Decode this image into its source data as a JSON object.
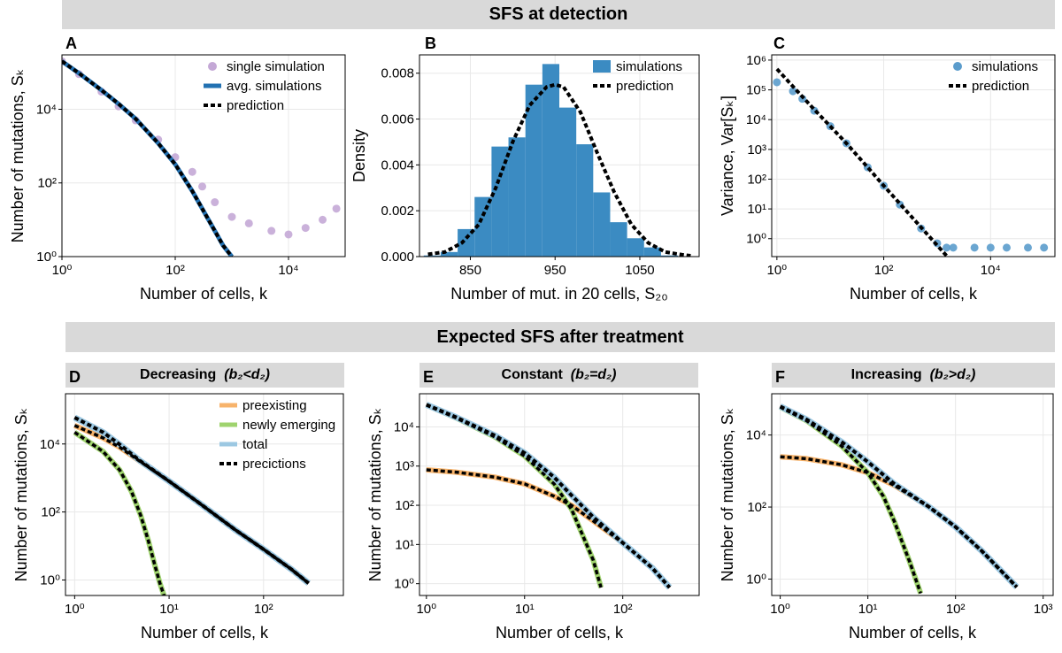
{
  "titles": {
    "top": "SFS at detection",
    "bottom": "Expected SFS after treatment"
  },
  "subbanners": {
    "D": {
      "text": "Decreasing",
      "cond": "(b₂<d₂)"
    },
    "E": {
      "text": "Constant",
      "cond": "(b₂=d₂)"
    },
    "F": {
      "text": "Increasing",
      "cond": "(b₂>d₂)"
    }
  },
  "colors": {
    "sim_purple": "#c4a8d6",
    "avg_blue": "#2271b2",
    "hist_blue": "#3b8bc2",
    "var_blue": "#5b9ccc",
    "preexisting": "#f7b36b",
    "newly": "#9fd36e",
    "total": "#9cc8e2",
    "prediction": "#000000",
    "grid": "#e8e8e8"
  },
  "chart_data": [
    {
      "panel": "A",
      "type": "scatter",
      "xlabel": "Number of cells, k",
      "ylabel": "Number of mutations, Sₖ",
      "xscale": "log",
      "yscale": "log",
      "xlim": [
        1,
        100000
      ],
      "ylim": [
        1,
        300000
      ],
      "xticks": [
        "10⁰",
        "10²",
        "10⁴"
      ],
      "yticks": [
        "10⁰",
        "10²",
        "10⁴"
      ],
      "legend_position": "top-right",
      "series": [
        {
          "name": "single simulation",
          "style": "scatter",
          "x": [
            1,
            2,
            5,
            10,
            20,
            50,
            100,
            200,
            300,
            500,
            1000,
            2000,
            5000,
            10000,
            20000,
            40000,
            70000
          ],
          "y": [
            200000,
            90000,
            30000,
            12000,
            5000,
            1500,
            500,
            200,
            80,
            30,
            12,
            8,
            5,
            4,
            6,
            10,
            20
          ]
        },
        {
          "name": "avg. simulations",
          "style": "line",
          "x": [
            1,
            2,
            5,
            10,
            20,
            50,
            100,
            200,
            300,
            500,
            700,
            1000
          ],
          "y": [
            200000,
            95000,
            33000,
            14000,
            5500,
            1200,
            320,
            60,
            20,
            5,
            2,
            1
          ]
        },
        {
          "name": "prediction",
          "style": "dotted",
          "x": [
            1,
            2,
            5,
            10,
            20,
            50,
            100,
            200,
            300,
            500,
            700,
            1000
          ],
          "y": [
            200000,
            95000,
            33000,
            14000,
            5500,
            1200,
            320,
            60,
            20,
            5,
            2,
            1
          ]
        }
      ]
    },
    {
      "panel": "B",
      "type": "bar",
      "xlabel": "Number of mut. in 20 cells, S₂₀",
      "ylabel": "Density",
      "xlim": [
        790,
        1120
      ],
      "ylim": [
        0,
        0.0088
      ],
      "xticks": [
        "850",
        "950",
        "1050"
      ],
      "yticks": [
        "0.000",
        "0.002",
        "0.004",
        "0.006",
        "0.008"
      ],
      "legend_position": "top-right",
      "bin_edges": [
        795,
        815,
        835,
        855,
        875,
        895,
        915,
        935,
        955,
        975,
        995,
        1015,
        1035,
        1055,
        1075,
        1095
      ],
      "series": [
        {
          "name": "simulations",
          "style": "bar",
          "values": [
            5e-05,
            0.0002,
            0.0012,
            0.0026,
            0.0048,
            0.0052,
            0.0075,
            0.0084,
            0.0065,
            0.0049,
            0.0028,
            0.0015,
            0.0008,
            0.0004,
            5e-05
          ]
        },
        {
          "name": "prediction",
          "style": "dotted",
          "x": [
            800,
            820,
            840,
            860,
            880,
            900,
            920,
            940,
            950,
            960,
            980,
            1000,
            1020,
            1040,
            1060,
            1080,
            1100,
            1110
          ],
          "y": [
            0.0001,
            0.0002,
            0.0006,
            0.0014,
            0.003,
            0.005,
            0.0066,
            0.0074,
            0.0075,
            0.0074,
            0.0063,
            0.0045,
            0.0028,
            0.0014,
            0.0006,
            0.0002,
            8e-05,
            4e-05
          ]
        }
      ]
    },
    {
      "panel": "C",
      "type": "scatter",
      "xlabel": "Number of cells, k",
      "ylabel": "Variance, Var[Sₖ]",
      "xscale": "log",
      "yscale": "log",
      "xlim": [
        0.8,
        160000
      ],
      "ylim": [
        0.25,
        1500000
      ],
      "xticks": [
        "10⁰",
        "10²",
        "10⁴"
      ],
      "yticks": [
        "10⁰",
        "10¹",
        "10²",
        "10³",
        "10⁴",
        "10⁵",
        "10⁶"
      ],
      "legend_position": "top-right",
      "series": [
        {
          "name": "simulations",
          "style": "scatter",
          "x": [
            1,
            2,
            3,
            5,
            10,
            20,
            50,
            100,
            200,
            500,
            1000,
            1500,
            2000,
            5000,
            10000,
            20000,
            50000,
            100000
          ],
          "y": [
            180000,
            90000,
            50000,
            20000,
            6000,
            1600,
            250,
            60,
            14,
            2.2,
            0.7,
            0.5,
            0.5,
            0.5,
            0.5,
            0.5,
            0.5,
            0.5
          ]
        },
        {
          "name": "prediction",
          "style": "dotted",
          "x": [
            1,
            2,
            5,
            10,
            20,
            50,
            100,
            200,
            500,
            1000,
            2000
          ],
          "y": [
            500000,
            130000,
            22000,
            6000,
            1600,
            250,
            60,
            15,
            2.4,
            0.6,
            0.15
          ]
        }
      ]
    },
    {
      "panel": "D",
      "type": "line",
      "xlabel": "Number of cells, k",
      "ylabel": "Number of mutations, Sₖ",
      "xscale": "log",
      "yscale": "log",
      "xlim": [
        0.8,
        700
      ],
      "ylim": [
        0.35,
        300000
      ],
      "xticks": [
        "10⁰",
        "10¹",
        "10²"
      ],
      "yticks": [
        "10⁰",
        "10²",
        "10⁴"
      ],
      "legend_position": "top-right",
      "series": [
        {
          "name": "preexisting",
          "style": "line",
          "x": [
            1,
            2,
            3,
            5,
            10,
            20,
            50,
            100,
            200,
            300
          ],
          "y": [
            35000,
            15000,
            8000,
            3000,
            800,
            200,
            30,
            8,
            2,
            0.8
          ]
        },
        {
          "name": "newly emerging",
          "style": "line",
          "x": [
            1,
            2,
            3,
            4,
            5,
            6,
            7,
            8,
            9
          ],
          "y": [
            22000,
            6000,
            1700,
            400,
            80,
            15,
            3,
            0.8,
            0.3
          ]
        },
        {
          "name": "total",
          "style": "line",
          "x": [
            1,
            2,
            3,
            5,
            10,
            20,
            50,
            100,
            200,
            300
          ],
          "y": [
            60000,
            22000,
            9600,
            3100,
            800,
            200,
            30,
            8,
            2,
            0.8
          ]
        },
        {
          "name": "precictions",
          "style": "dotted",
          "x": [
            1,
            2,
            3,
            5,
            10,
            20,
            50,
            100,
            200,
            300
          ],
          "y": [
            60000,
            22000,
            9600,
            3100,
            800,
            200,
            30,
            8,
            2,
            0.8
          ]
        }
      ]
    },
    {
      "panel": "E",
      "type": "line",
      "xlabel": "Number of cells, k",
      "ylabel": "Number of mutations, Sₖ",
      "xscale": "log",
      "yscale": "log",
      "xlim": [
        0.85,
        600
      ],
      "ylim": [
        0.5,
        70000
      ],
      "xticks": [
        "10⁰",
        "10¹",
        "10²"
      ],
      "yticks": [
        "10⁰",
        "10¹",
        "10²",
        "10³",
        "10⁴"
      ],
      "series": [
        {
          "name": "preexisting",
          "style": "line",
          "x": [
            1,
            2,
            5,
            10,
            20,
            30,
            50,
            100,
            200,
            300
          ],
          "y": [
            800,
            700,
            520,
            350,
            170,
            100,
            40,
            11,
            2.5,
            0.8
          ]
        },
        {
          "name": "newly emerging",
          "style": "line",
          "x": [
            1,
            2,
            5,
            10,
            20,
            30,
            40,
            50,
            60
          ],
          "y": [
            36000,
            17000,
            5500,
            1800,
            350,
            80,
            15,
            4,
            0.8
          ]
        },
        {
          "name": "total",
          "style": "line",
          "x": [
            1,
            2,
            5,
            10,
            20,
            30,
            50,
            100,
            200,
            300
          ],
          "y": [
            36800,
            17700,
            6000,
            2150,
            520,
            180,
            50,
            11,
            2.5,
            0.8
          ]
        },
        {
          "name": "precictions",
          "style": "dotted",
          "x": [
            1,
            2,
            5,
            10,
            20,
            30,
            50,
            100,
            200,
            300
          ],
          "y": [
            36800,
            17700,
            6000,
            2150,
            520,
            180,
            50,
            11,
            2.5,
            0.8
          ]
        }
      ]
    },
    {
      "panel": "F",
      "type": "line",
      "xlabel": "Number of cells, k",
      "ylabel": "Number of mutations, Sₖ",
      "xscale": "log",
      "yscale": "log",
      "xlim": [
        0.8,
        1300
      ],
      "ylim": [
        0.35,
        140000
      ],
      "xticks": [
        "10⁰",
        "10¹",
        "10²",
        "10³"
      ],
      "yticks": [
        "10⁰",
        "10²",
        "10⁴"
      ],
      "series": [
        {
          "name": "preexisting",
          "style": "line",
          "x": [
            1,
            2,
            5,
            10,
            20,
            50,
            100,
            200,
            500
          ],
          "y": [
            2500,
            2200,
            1500,
            900,
            400,
            100,
            28,
            6,
            0.6
          ]
        },
        {
          "name": "newly emerging",
          "style": "line",
          "x": [
            1,
            2,
            5,
            10,
            15,
            20,
            30,
            40
          ],
          "y": [
            60000,
            25000,
            5000,
            900,
            200,
            40,
            3,
            0.4
          ]
        },
        {
          "name": "total",
          "style": "line",
          "x": [
            1,
            2,
            5,
            10,
            20,
            50,
            100,
            200,
            500
          ],
          "y": [
            62500,
            27000,
            6500,
            1800,
            440,
            100,
            28,
            6,
            0.6
          ]
        },
        {
          "name": "precictions",
          "style": "dotted",
          "x": [
            1,
            2,
            5,
            10,
            20,
            50,
            100,
            200,
            500
          ],
          "y": [
            62500,
            27000,
            6500,
            1800,
            440,
            100,
            28,
            6,
            0.6
          ]
        }
      ]
    }
  ]
}
